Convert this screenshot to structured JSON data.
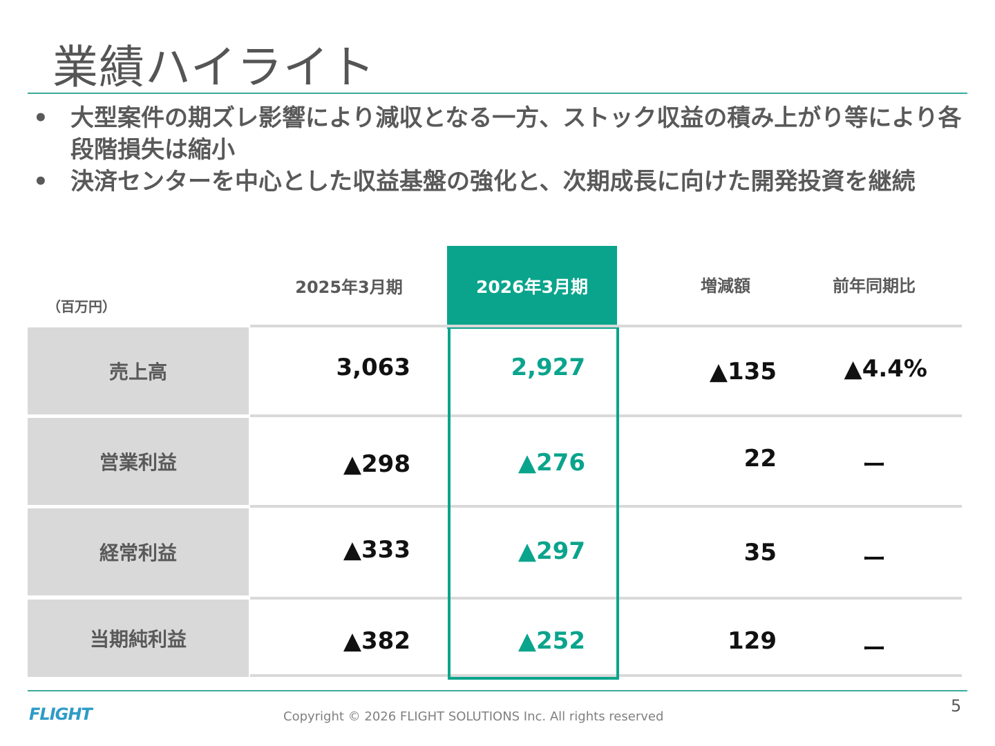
{
  "title": "業績ハイライト",
  "bullets": [
    {
      "marker": "•",
      "text": "大型案件の期ズレ影響により減収となる一方、ストック収益の積み上がり等により各段階損失は縮小"
    },
    {
      "marker": "•",
      "text": "決済センターを中心とした収益基盤の強化と、次期成長に向けた開発投資を継続"
    }
  ],
  "table": {
    "unit": "（百万円）",
    "headers": {
      "prev": "2025年3月期",
      "curr": "2026年3月期",
      "diff": "増減額",
      "yoy": "前年同期比"
    },
    "rows": [
      {
        "label": "売上高",
        "prev": "3,063",
        "curr": "2,927",
        "diff": "▲135",
        "yoy": "▲4.4%"
      },
      {
        "label": "営業利益",
        "prev": "▲298",
        "curr": "▲276",
        "diff": "22",
        "yoy": "ー"
      },
      {
        "label": "経常利益",
        "prev": "▲333",
        "curr": "▲297",
        "diff": "35",
        "yoy": "ー"
      },
      {
        "label": "当期純利益",
        "prev": "▲382",
        "curr": "▲252",
        "diff": "129",
        "yoy": "ー"
      }
    ]
  },
  "footer": {
    "logo": "FLIGHT",
    "copyright": "Copyright ©  2026 FLIGHT SOLUTIONS Inc. All rights reserved",
    "page": "5"
  },
  "colors": {
    "accent": "#0aa48c",
    "rule": "#3aa99a",
    "label_bg": "#d9d9d9"
  }
}
